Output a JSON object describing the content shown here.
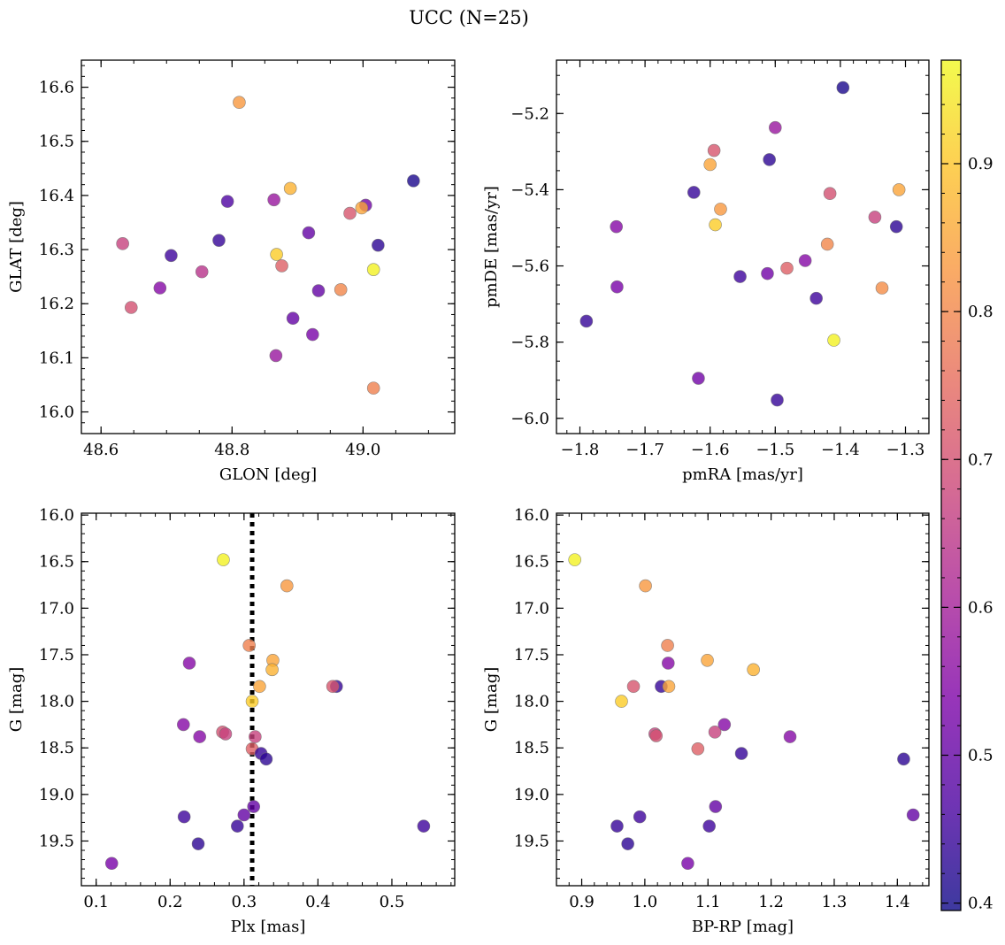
{
  "figure": {
    "title": "UCC (N=25)"
  },
  "chart_data": [
    {
      "type": "scatter",
      "xlabel": "GLON [deg]",
      "ylabel": "GLAT [deg]",
      "xlim": [
        48.57,
        49.14
      ],
      "ylim": [
        15.96,
        16.65
      ],
      "xticks": [
        48.6,
        48.8,
        49.0
      ],
      "xtick_labels": [
        "48.6",
        "48.8",
        "49.0"
      ],
      "xminor": 0.05,
      "yticks": [
        16.0,
        16.1,
        16.2,
        16.3,
        16.4,
        16.5,
        16.6
      ],
      "ytick_labels": [
        "16.0",
        "16.1",
        "16.2",
        "16.3",
        "16.4",
        "16.5",
        "16.6"
      ],
      "yminor": 0.02,
      "points": [
        {
          "x": 48.811,
          "y": 16.572,
          "c": 0.83
        },
        {
          "x": 49.077,
          "y": 16.427,
          "c": 0.41
        },
        {
          "x": 48.889,
          "y": 16.413,
          "c": 0.87
        },
        {
          "x": 48.864,
          "y": 16.392,
          "c": 0.58
        },
        {
          "x": 48.793,
          "y": 16.389,
          "c": 0.47
        },
        {
          "x": 49.004,
          "y": 16.382,
          "c": 0.52
        },
        {
          "x": 48.998,
          "y": 16.377,
          "c": 0.85
        },
        {
          "x": 48.98,
          "y": 16.367,
          "c": 0.71
        },
        {
          "x": 48.917,
          "y": 16.331,
          "c": 0.5
        },
        {
          "x": 48.78,
          "y": 16.317,
          "c": 0.44
        },
        {
          "x": 48.633,
          "y": 16.311,
          "c": 0.67
        },
        {
          "x": 49.023,
          "y": 16.308,
          "c": 0.43
        },
        {
          "x": 48.868,
          "y": 16.291,
          "c": 0.91
        },
        {
          "x": 48.707,
          "y": 16.289,
          "c": 0.45
        },
        {
          "x": 48.876,
          "y": 16.27,
          "c": 0.73
        },
        {
          "x": 49.016,
          "y": 16.263,
          "c": 0.96
        },
        {
          "x": 48.754,
          "y": 16.259,
          "c": 0.64
        },
        {
          "x": 48.932,
          "y": 16.224,
          "c": 0.5
        },
        {
          "x": 48.966,
          "y": 16.226,
          "c": 0.8
        },
        {
          "x": 48.69,
          "y": 16.229,
          "c": 0.55
        },
        {
          "x": 48.646,
          "y": 16.193,
          "c": 0.7
        },
        {
          "x": 48.893,
          "y": 16.173,
          "c": 0.5
        },
        {
          "x": 48.923,
          "y": 16.143,
          "c": 0.53
        },
        {
          "x": 48.867,
          "y": 16.104,
          "c": 0.58
        },
        {
          "x": 49.016,
          "y": 16.044,
          "c": 0.79
        }
      ]
    },
    {
      "type": "scatter",
      "xlabel": "pmRA [mas/yr]",
      "ylabel": "pmDE [mas/yr]",
      "xlim": [
        -1.836,
        -1.264
      ],
      "ylim": [
        -6.04,
        -5.06
      ],
      "xticks": [
        -1.8,
        -1.7,
        -1.6,
        -1.5,
        -1.4,
        -1.3
      ],
      "xtick_labels": [
        "−1.8",
        "−1.7",
        "−1.6",
        "−1.5",
        "−1.4",
        "−1.3"
      ],
      "xminor": 0.02,
      "yticks": [
        -6.0,
        -5.8,
        -5.6,
        -5.4,
        -5.2
      ],
      "ytick_labels": [
        "−6.0",
        "−5.8",
        "−5.6",
        "−5.4",
        "−5.2"
      ],
      "yminor": 0.05,
      "points": [
        {
          "x": -1.396,
          "y": -5.132,
          "c": 0.41
        },
        {
          "x": -1.5,
          "y": -5.237,
          "c": 0.58
        },
        {
          "x": -1.594,
          "y": -5.297,
          "c": 0.71
        },
        {
          "x": -1.509,
          "y": -5.321,
          "c": 0.43
        },
        {
          "x": -1.6,
          "y": -5.334,
          "c": 0.85
        },
        {
          "x": -1.31,
          "y": -5.4,
          "c": 0.85
        },
        {
          "x": -1.625,
          "y": -5.407,
          "c": 0.44
        },
        {
          "x": -1.416,
          "y": -5.41,
          "c": 0.7
        },
        {
          "x": -1.584,
          "y": -5.451,
          "c": 0.83
        },
        {
          "x": -1.347,
          "y": -5.472,
          "c": 0.67
        },
        {
          "x": -1.592,
          "y": -5.492,
          "c": 0.91
        },
        {
          "x": -1.744,
          "y": -5.497,
          "c": 0.55
        },
        {
          "x": -1.314,
          "y": -5.497,
          "c": 0.43
        },
        {
          "x": -1.42,
          "y": -5.543,
          "c": 0.8
        },
        {
          "x": -1.454,
          "y": -5.586,
          "c": 0.55
        },
        {
          "x": -1.482,
          "y": -5.606,
          "c": 0.73
        },
        {
          "x": -1.512,
          "y": -5.62,
          "c": 0.52
        },
        {
          "x": -1.554,
          "y": -5.628,
          "c": 0.45
        },
        {
          "x": -1.743,
          "y": -5.655,
          "c": 0.53
        },
        {
          "x": -1.336,
          "y": -5.658,
          "c": 0.81
        },
        {
          "x": -1.437,
          "y": -5.685,
          "c": 0.45
        },
        {
          "x": -1.79,
          "y": -5.745,
          "c": 0.44
        },
        {
          "x": -1.41,
          "y": -5.795,
          "c": 0.96
        },
        {
          "x": -1.618,
          "y": -5.895,
          "c": 0.52
        },
        {
          "x": -1.497,
          "y": -5.952,
          "c": 0.44
        }
      ]
    },
    {
      "type": "scatter",
      "xlabel": "Plx [mas]",
      "ylabel": "G [mag]",
      "xlim": [
        0.08,
        0.585
      ],
      "ylim": [
        19.98,
        15.98
      ],
      "y_inverted": true,
      "vline": {
        "x": 0.311,
        "style": "dotted",
        "color": "#000000"
      },
      "xticks": [
        0.1,
        0.2,
        0.3,
        0.4,
        0.5
      ],
      "xtick_labels": [
        "0.1",
        "0.2",
        "0.3",
        "0.4",
        "0.5"
      ],
      "xminor": 0.02,
      "yticks": [
        16.0,
        16.5,
        17.0,
        17.5,
        18.0,
        18.5,
        19.0,
        19.5
      ],
      "ytick_labels": [
        "16.0",
        "16.5",
        "17.0",
        "17.5",
        "18.0",
        "18.5",
        "19.0",
        "19.5"
      ],
      "yminor": 0.1,
      "points": [
        {
          "x": 0.272,
          "y": 16.48,
          "c": 0.96
        },
        {
          "x": 0.358,
          "y": 16.76,
          "c": 0.83
        },
        {
          "x": 0.307,
          "y": 17.4,
          "c": 0.79
        },
        {
          "x": 0.339,
          "y": 17.56,
          "c": 0.85
        },
        {
          "x": 0.226,
          "y": 17.59,
          "c": 0.55
        },
        {
          "x": 0.338,
          "y": 17.66,
          "c": 0.87
        },
        {
          "x": 0.425,
          "y": 17.84,
          "c": 0.44
        },
        {
          "x": 0.42,
          "y": 17.84,
          "c": 0.71
        },
        {
          "x": 0.321,
          "y": 17.84,
          "c": 0.85
        },
        {
          "x": 0.311,
          "y": 18.0,
          "c": 0.91
        },
        {
          "x": 0.218,
          "y": 18.25,
          "c": 0.55
        },
        {
          "x": 0.271,
          "y": 18.33,
          "c": 0.7
        },
        {
          "x": 0.275,
          "y": 18.35,
          "c": 0.67
        },
        {
          "x": 0.24,
          "y": 18.38,
          "c": 0.55
        },
        {
          "x": 0.315,
          "y": 18.38,
          "c": 0.67
        },
        {
          "x": 0.311,
          "y": 18.51,
          "c": 0.73
        },
        {
          "x": 0.323,
          "y": 18.56,
          "c": 0.44
        },
        {
          "x": 0.33,
          "y": 18.62,
          "c": 0.43
        },
        {
          "x": 0.313,
          "y": 19.13,
          "c": 0.5
        },
        {
          "x": 0.3,
          "y": 19.22,
          "c": 0.5
        },
        {
          "x": 0.219,
          "y": 19.24,
          "c": 0.45
        },
        {
          "x": 0.291,
          "y": 19.34,
          "c": 0.44
        },
        {
          "x": 0.543,
          "y": 19.34,
          "c": 0.45
        },
        {
          "x": 0.238,
          "y": 19.53,
          "c": 0.43
        },
        {
          "x": 0.121,
          "y": 19.74,
          "c": 0.53
        }
      ]
    },
    {
      "type": "scatter",
      "xlabel": "BP-RP [mag]",
      "ylabel": "G [mag]",
      "xlim": [
        0.86,
        1.45
      ],
      "ylim": [
        19.98,
        15.98
      ],
      "y_inverted": true,
      "xticks": [
        0.9,
        1.0,
        1.1,
        1.2,
        1.3,
        1.4
      ],
      "xtick_labels": [
        "0.9",
        "1.0",
        "1.1",
        "1.2",
        "1.3",
        "1.4"
      ],
      "xminor": 0.02,
      "yticks": [
        16.0,
        16.5,
        17.0,
        17.5,
        18.0,
        18.5,
        19.0,
        19.5
      ],
      "ytick_labels": [
        "16.0",
        "16.5",
        "17.0",
        "17.5",
        "18.0",
        "18.5",
        "19.0",
        "19.5"
      ],
      "yminor": 0.1,
      "points": [
        {
          "x": 0.889,
          "y": 16.48,
          "c": 0.96
        },
        {
          "x": 1.001,
          "y": 16.76,
          "c": 0.83
        },
        {
          "x": 1.036,
          "y": 17.4,
          "c": 0.79
        },
        {
          "x": 1.099,
          "y": 17.56,
          "c": 0.85
        },
        {
          "x": 1.037,
          "y": 17.59,
          "c": 0.55
        },
        {
          "x": 1.172,
          "y": 17.66,
          "c": 0.87
        },
        {
          "x": 1.026,
          "y": 17.84,
          "c": 0.44
        },
        {
          "x": 0.982,
          "y": 17.84,
          "c": 0.71
        },
        {
          "x": 1.038,
          "y": 17.84,
          "c": 0.85
        },
        {
          "x": 0.963,
          "y": 18.0,
          "c": 0.91
        },
        {
          "x": 1.126,
          "y": 18.25,
          "c": 0.55
        },
        {
          "x": 1.016,
          "y": 18.35,
          "c": 0.67
        },
        {
          "x": 1.111,
          "y": 18.33,
          "c": 0.67
        },
        {
          "x": 1.018,
          "y": 18.37,
          "c": 0.7
        },
        {
          "x": 1.23,
          "y": 18.38,
          "c": 0.55
        },
        {
          "x": 1.084,
          "y": 18.51,
          "c": 0.73
        },
        {
          "x": 1.153,
          "y": 18.56,
          "c": 0.44
        },
        {
          "x": 1.41,
          "y": 18.62,
          "c": 0.43
        },
        {
          "x": 1.112,
          "y": 19.13,
          "c": 0.5
        },
        {
          "x": 1.425,
          "y": 19.22,
          "c": 0.5
        },
        {
          "x": 0.992,
          "y": 19.24,
          "c": 0.45
        },
        {
          "x": 0.956,
          "y": 19.34,
          "c": 0.44
        },
        {
          "x": 1.102,
          "y": 19.34,
          "c": 0.45
        },
        {
          "x": 0.973,
          "y": 19.53,
          "c": 0.43
        },
        {
          "x": 1.068,
          "y": 19.74,
          "c": 0.53
        }
      ]
    }
  ],
  "colorbar": {
    "colormap": "plasma",
    "range": [
      0.395,
      0.97
    ],
    "ticks": [
      0.4,
      0.5,
      0.6,
      0.7,
      0.8,
      0.9
    ],
    "tick_labels": [
      "0.4",
      "0.5",
      "0.6",
      "0.7",
      "0.8",
      "0.9"
    ],
    "minor": 0.02
  },
  "colors": {
    "background": "#ffffff",
    "axes": "#000000",
    "marker_edge": "#707070"
  }
}
